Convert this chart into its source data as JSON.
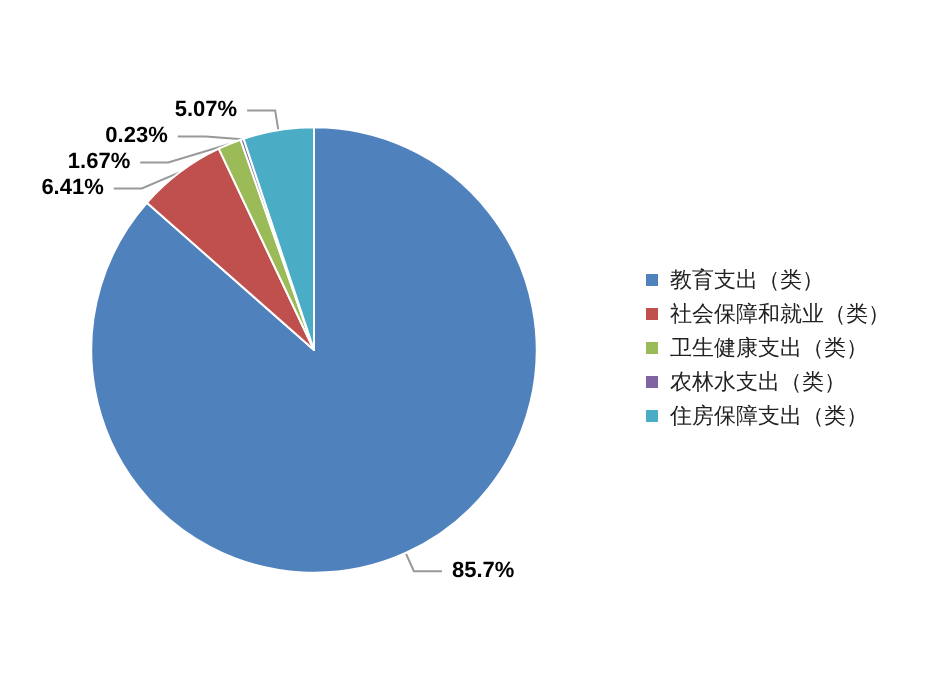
{
  "chart_data": {
    "type": "pie",
    "categories": [
      "教育支出（类）",
      "社会保障和就业（类）",
      "卫生健康支出（类）",
      "农林水支出（类）",
      "住房保障支出（类）"
    ],
    "values": [
      85.7,
      6.41,
      1.67,
      0.23,
      5.07
    ],
    "colors": [
      "#4f81bd",
      "#c0504d",
      "#9bbb59",
      "#8064a2",
      "#4bacc6"
    ],
    "value_labels": [
      "85.7%",
      "6.41%",
      "1.67%",
      "0.23%",
      "5.07%"
    ],
    "legend": "right"
  }
}
